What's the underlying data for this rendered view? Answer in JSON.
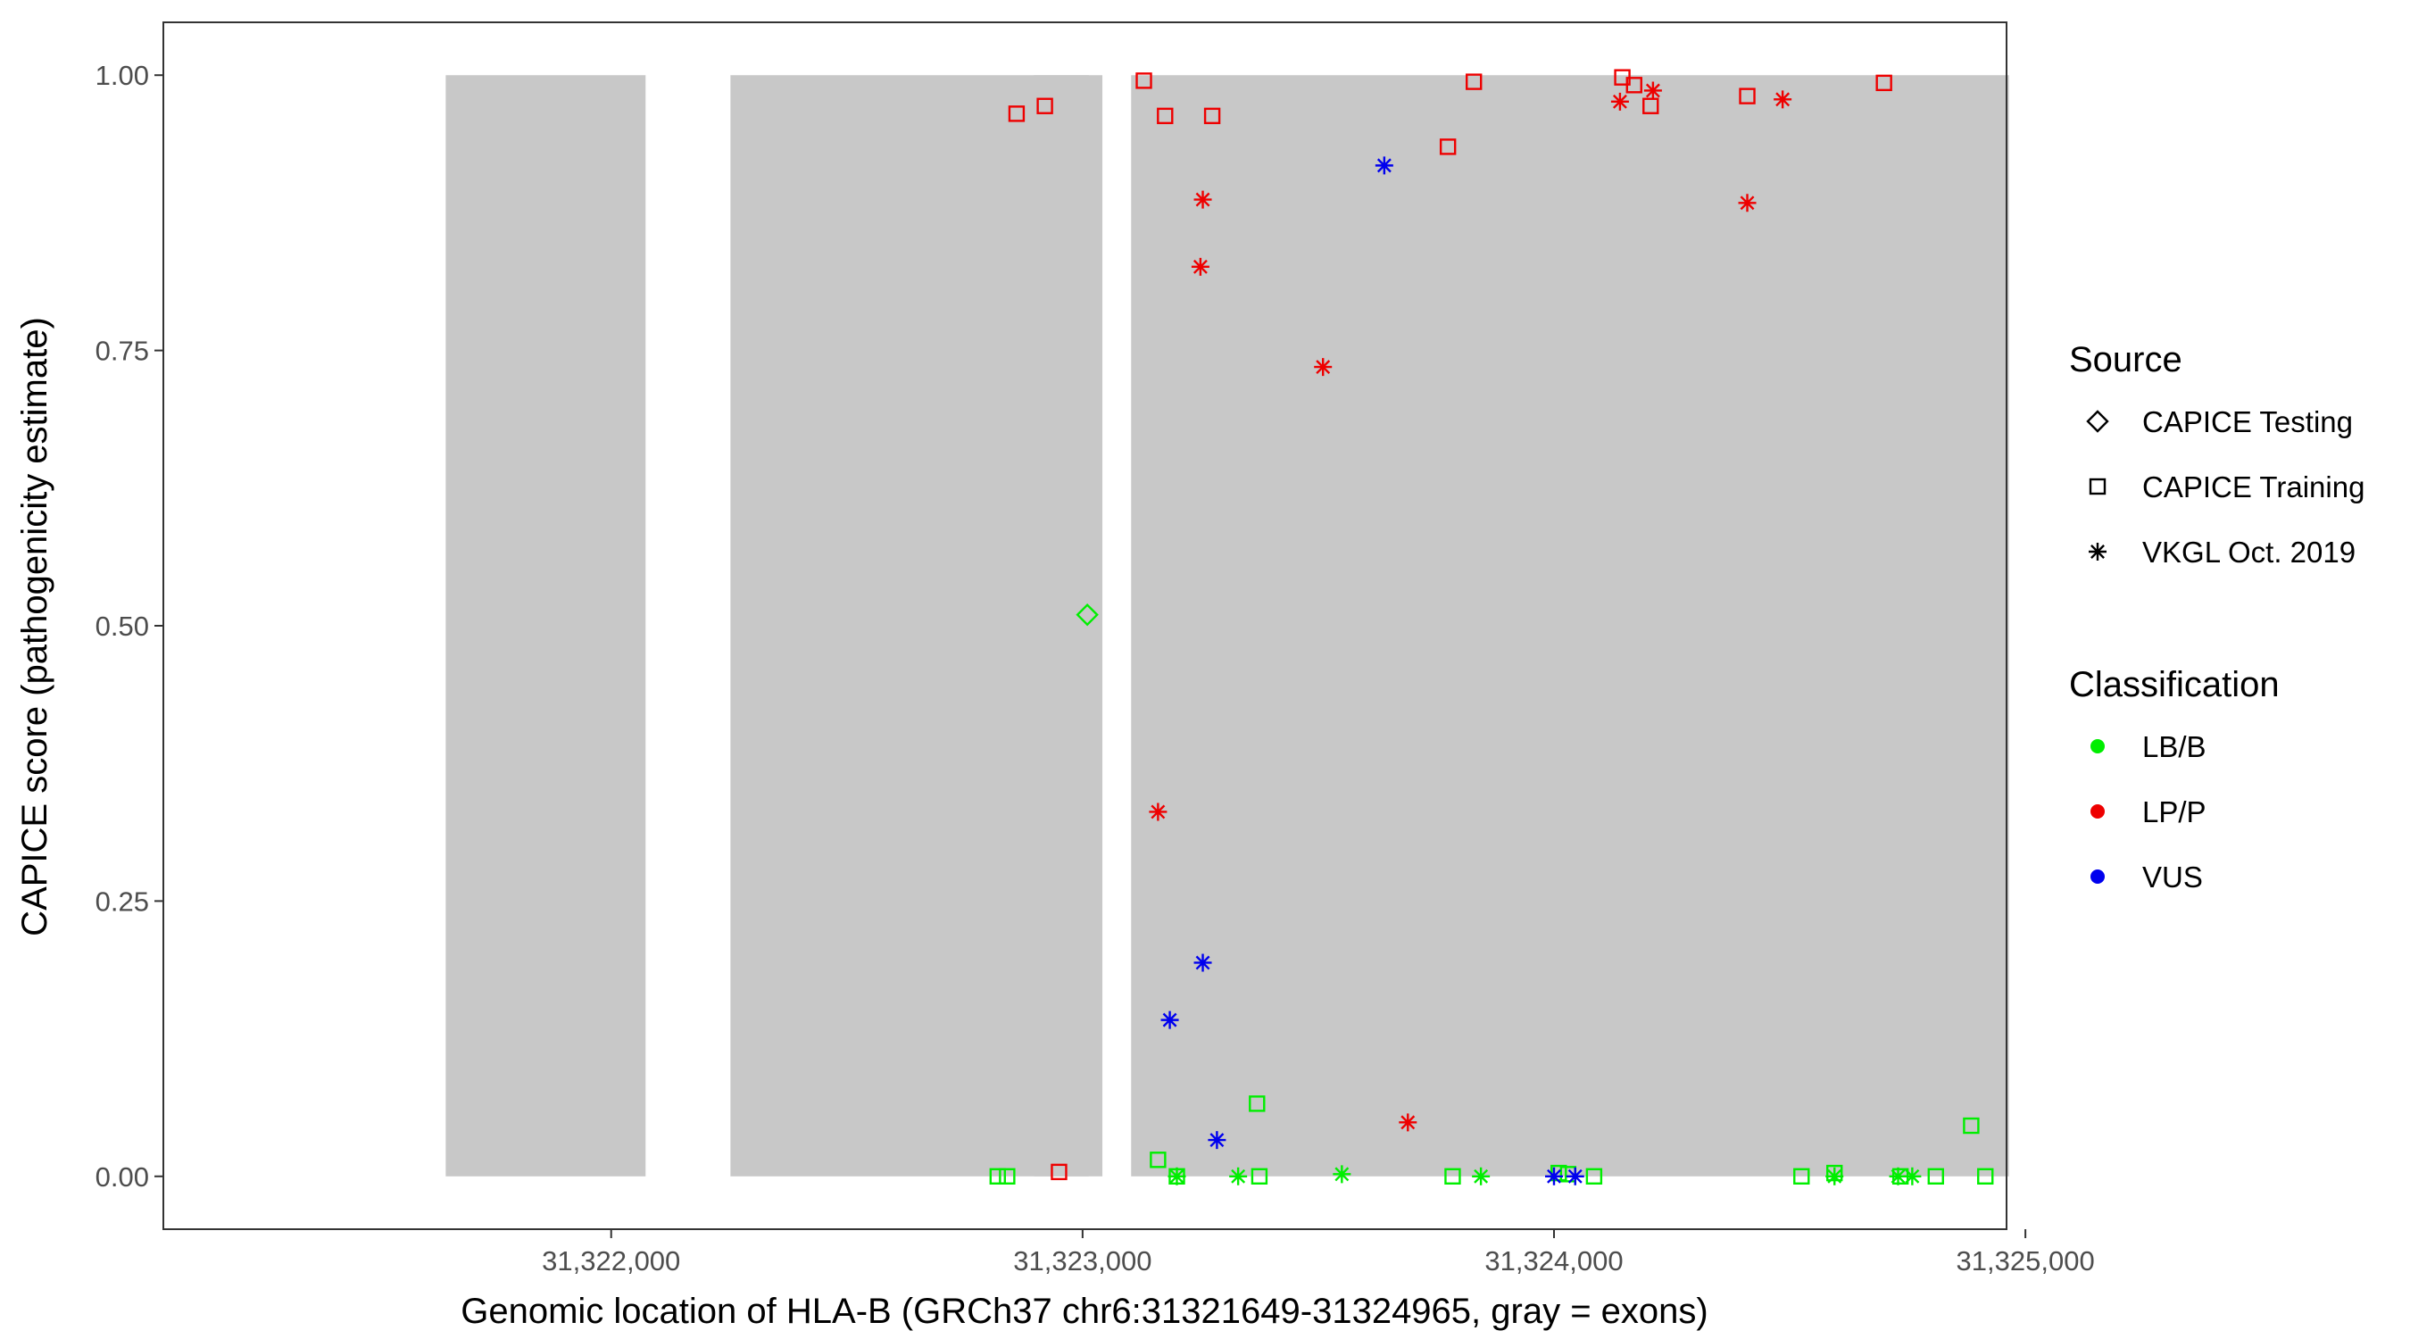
{
  "chart_data": {
    "type": "scatter",
    "title": "",
    "xlabel": "Genomic location of HLA-B (GRCh37 chr6:31321649-31324965, gray = exons)",
    "ylabel": "CAPICE score (pathogenicity estimate)",
    "xlim": [
      31321050,
      31324960
    ],
    "ylim": [
      -0.048,
      1.048
    ],
    "x_ticks": [
      31322000,
      31323000,
      31324000,
      31325000
    ],
    "x_tick_labels": [
      "31,322,000",
      "31,323,000",
      "31,324,000",
      "31,325,000"
    ],
    "y_ticks": [
      0,
      0.25,
      0.5,
      0.75,
      1.0
    ],
    "y_tick_labels": [
      "0.00",
      "0.25",
      "0.50",
      "0.75",
      "1.00"
    ],
    "grid": false,
    "exons": [
      [
        31321649,
        31322073
      ],
      [
        31322253,
        31323042
      ],
      [
        31322897,
        31323013
      ],
      [
        31323103,
        31324965
      ]
    ],
    "exon_color": "#c8c8c8",
    "exon_value_range": [
      0,
      1
    ],
    "classification_colors": {
      "LB/B": "#00ee00",
      "LP/P": "#ee0000",
      "VUS": "#0000ee"
    },
    "legend_position": "right",
    "legend": {
      "source_title": "Source",
      "sources": [
        {
          "label": "CAPICE Testing",
          "shape": "diamond"
        },
        {
          "label": "CAPICE Training",
          "shape": "square"
        },
        {
          "label": "VKGL Oct. 2019",
          "shape": "asterisk"
        }
      ],
      "classification_title": "Classification",
      "classes": [
        {
          "label": "LB/B",
          "color": "#00ee00"
        },
        {
          "label": "LP/P",
          "color": "#ee0000"
        },
        {
          "label": "VUS",
          "color": "#0000ee"
        }
      ]
    },
    "series": [
      {
        "name": "CAPICE Testing",
        "shape": "diamond",
        "points": [
          {
            "x": 31323010,
            "y": 0.51,
            "class": "LB/B"
          }
        ]
      },
      {
        "name": "CAPICE Training",
        "shape": "square",
        "points": [
          {
            "x": 31322860,
            "y": 0.965,
            "class": "LP/P"
          },
          {
            "x": 31322920,
            "y": 0.972,
            "class": "LP/P"
          },
          {
            "x": 31322950,
            "y": 0.004,
            "class": "LP/P"
          },
          {
            "x": 31323130,
            "y": 0.995,
            "class": "LP/P"
          },
          {
            "x": 31323175,
            "y": 0.963,
            "class": "LP/P"
          },
          {
            "x": 31323275,
            "y": 0.963,
            "class": "LP/P"
          },
          {
            "x": 31323775,
            "y": 0.935,
            "class": "LP/P"
          },
          {
            "x": 31323830,
            "y": 0.994,
            "class": "LP/P"
          },
          {
            "x": 31324145,
            "y": 0.998,
            "class": "LP/P"
          },
          {
            "x": 31324170,
            "y": 0.991,
            "class": "LP/P"
          },
          {
            "x": 31324205,
            "y": 0.972,
            "class": "LP/P"
          },
          {
            "x": 31324410,
            "y": 0.981,
            "class": "LP/P"
          },
          {
            "x": 31324700,
            "y": 0.993,
            "class": "LP/P"
          },
          {
            "x": 31322820,
            "y": 0.0,
            "class": "LB/B"
          },
          {
            "x": 31322840,
            "y": 0.0,
            "class": "LB/B"
          },
          {
            "x": 31323160,
            "y": 0.015,
            "class": "LB/B"
          },
          {
            "x": 31323200,
            "y": 0.0,
            "class": "LB/B"
          },
          {
            "x": 31323370,
            "y": 0.066,
            "class": "LB/B"
          },
          {
            "x": 31323375,
            "y": 0.0,
            "class": "LB/B"
          },
          {
            "x": 31323785,
            "y": 0.0,
            "class": "LB/B"
          },
          {
            "x": 31324010,
            "y": 0.003,
            "class": "LB/B"
          },
          {
            "x": 31324030,
            "y": 0.002,
            "class": "LB/B"
          },
          {
            "x": 31324085,
            "y": 0.0,
            "class": "LB/B"
          },
          {
            "x": 31324525,
            "y": 0.0,
            "class": "LB/B"
          },
          {
            "x": 31324595,
            "y": 0.003,
            "class": "LB/B"
          },
          {
            "x": 31324735,
            "y": 0.0,
            "class": "LB/B"
          },
          {
            "x": 31324810,
            "y": 0.0,
            "class": "LB/B"
          },
          {
            "x": 31324885,
            "y": 0.046,
            "class": "LB/B"
          },
          {
            "x": 31324915,
            "y": 0.0,
            "class": "LB/B"
          }
        ]
      },
      {
        "name": "VKGL Oct. 2019",
        "shape": "asterisk",
        "points": [
          {
            "x": 31323160,
            "y": 0.331,
            "class": "LP/P"
          },
          {
            "x": 31323250,
            "y": 0.826,
            "class": "LP/P"
          },
          {
            "x": 31323255,
            "y": 0.887,
            "class": "LP/P"
          },
          {
            "x": 31323510,
            "y": 0.735,
            "class": "LP/P"
          },
          {
            "x": 31323690,
            "y": 0.049,
            "class": "LP/P"
          },
          {
            "x": 31324140,
            "y": 0.976,
            "class": "LP/P"
          },
          {
            "x": 31324210,
            "y": 0.986,
            "class": "LP/P"
          },
          {
            "x": 31324410,
            "y": 0.884,
            "class": "LP/P"
          },
          {
            "x": 31324485,
            "y": 0.978,
            "class": "LP/P"
          },
          {
            "x": 31323185,
            "y": 0.142,
            "class": "VUS"
          },
          {
            "x": 31323255,
            "y": 0.194,
            "class": "VUS"
          },
          {
            "x": 31323285,
            "y": 0.033,
            "class": "VUS"
          },
          {
            "x": 31323640,
            "y": 0.918,
            "class": "VUS"
          },
          {
            "x": 31324000,
            "y": 0.0,
            "class": "VUS"
          },
          {
            "x": 31324045,
            "y": 0.0,
            "class": "VUS"
          },
          {
            "x": 31323200,
            "y": 0.0,
            "class": "LB/B"
          },
          {
            "x": 31323330,
            "y": 0.0,
            "class": "LB/B"
          },
          {
            "x": 31323550,
            "y": 0.002,
            "class": "LB/B"
          },
          {
            "x": 31323845,
            "y": 0.0,
            "class": "LB/B"
          },
          {
            "x": 31324595,
            "y": 0.0,
            "class": "LB/B"
          },
          {
            "x": 31324730,
            "y": 0.0,
            "class": "LB/B"
          },
          {
            "x": 31324760,
            "y": 0.0,
            "class": "LB/B"
          }
        ]
      }
    ]
  }
}
